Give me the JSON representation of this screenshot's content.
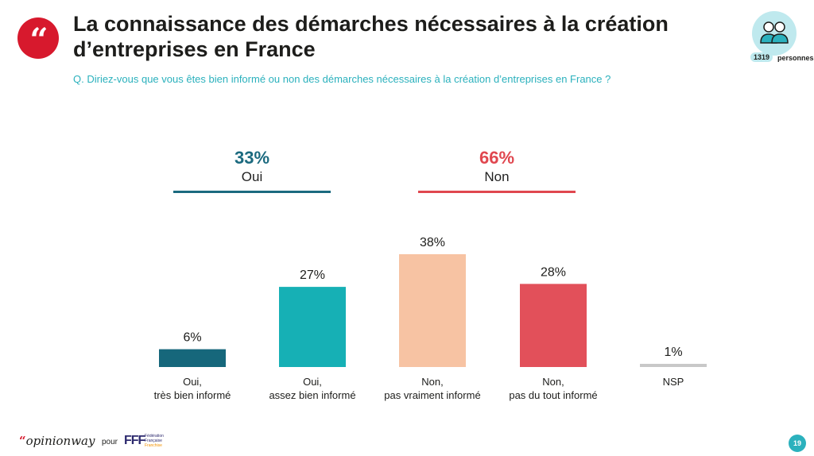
{
  "header": {
    "title_line1": "La connaissance des démarches nécessaires à la création",
    "title_line2": "d’entreprises en France",
    "question": "Q. Diriez-vous que vous êtes bien informé ou non des démarches nécessaires à la création d’entreprises en France ?",
    "sample_count": "1319",
    "sample_label": "personnes"
  },
  "groups": {
    "yes": {
      "pct": "33%",
      "label": "Oui",
      "color": "#1b6a7f"
    },
    "no": {
      "pct": "66%",
      "label": "Non",
      "color": "#e0474f"
    }
  },
  "chart_data": {
    "type": "bar",
    "categories": [
      [
        "Oui,",
        "très bien informé"
      ],
      [
        "Oui,",
        "assez bien informé"
      ],
      [
        "Non,",
        "pas vraiment informé"
      ],
      [
        "Non,",
        "pas du tout informé"
      ],
      [
        "NSP"
      ]
    ],
    "values": [
      6,
      27,
      38,
      28,
      1
    ],
    "value_labels": [
      "6%",
      "27%",
      "38%",
      "28%",
      "1%"
    ],
    "colors": [
      "#16677b",
      "#16b0b5",
      "#f7c3a3",
      "#e2505a",
      "#c8c8c8"
    ],
    "ylim": [
      0,
      40
    ],
    "grid": false,
    "legend": "none"
  },
  "footer": {
    "brand_quote": "“",
    "brand_name": "opinionway",
    "pour": "pour",
    "partner_mark": "FFF",
    "partner_text_1": "Fédération",
    "partner_text_2": "Française",
    "partner_text_3": "Franchise",
    "page_number": "19"
  }
}
